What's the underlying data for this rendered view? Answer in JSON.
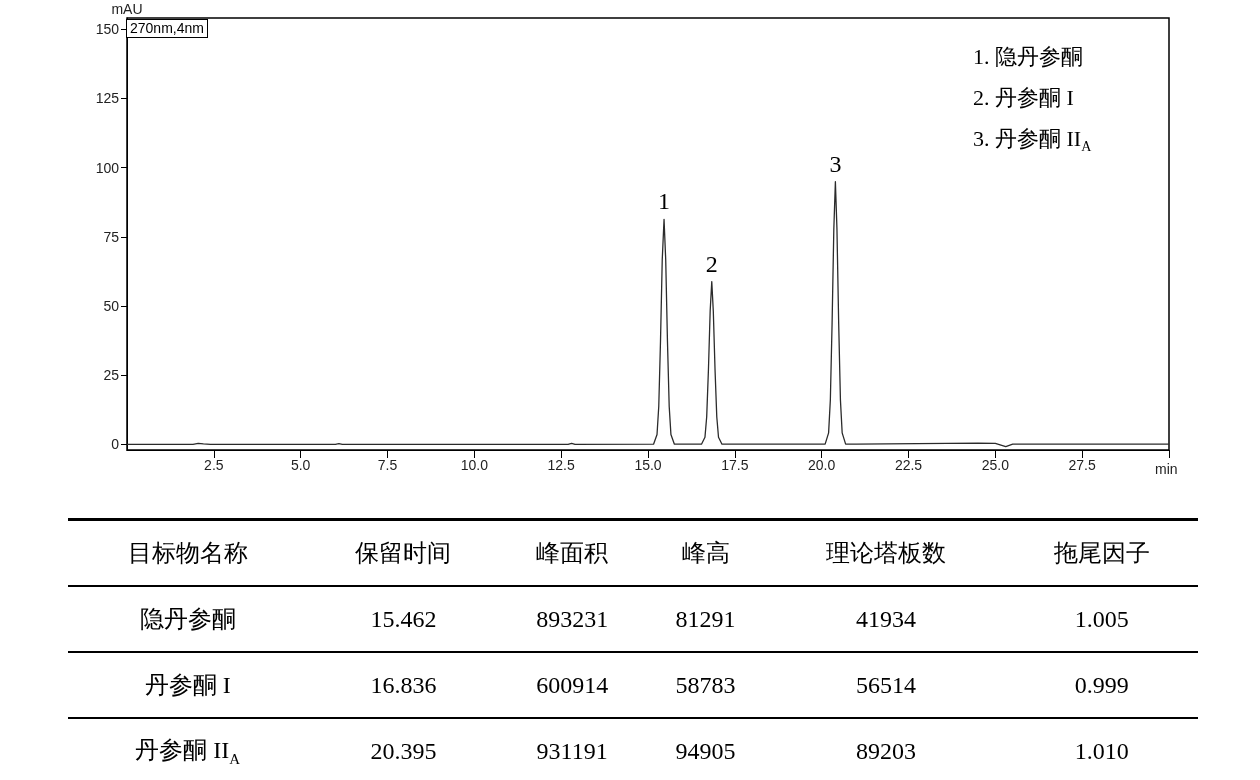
{
  "chart_data": [
    {
      "type": "line",
      "ylabel": "mAU",
      "xlabel": "min",
      "color": "#2b2b2b",
      "line_style": "solid",
      "x": [
        0,
        1.9,
        2.05,
        2.2,
        2.4,
        6.0,
        6.1,
        6.2,
        12.7,
        12.8,
        12.9,
        15.16,
        15.26,
        15.31,
        15.36,
        15.41,
        15.462,
        15.51,
        15.56,
        15.61,
        15.66,
        15.76,
        16.54,
        16.64,
        16.69,
        16.74,
        16.79,
        16.836,
        16.88,
        16.93,
        16.98,
        17.03,
        17.13,
        20.1,
        20.2,
        20.25,
        20.3,
        20.35,
        20.395,
        20.44,
        20.49,
        20.54,
        20.59,
        20.69,
        21.0,
        24.5,
        25.0,
        25.3,
        25.5,
        30.0
      ],
      "values": [
        0,
        0,
        0.4,
        0.2,
        0,
        0,
        0.3,
        0,
        0,
        0.4,
        0,
        0.1,
        3.6,
        13.8,
        37.4,
        66.7,
        81.3,
        66.7,
        37.4,
        13.8,
        3.6,
        0.1,
        0.1,
        2.6,
        10,
        27,
        48.2,
        58.8,
        48.2,
        27,
        10,
        2.6,
        0.1,
        0.1,
        4.2,
        16.1,
        43.7,
        77.8,
        94.9,
        77.8,
        43.7,
        16.1,
        4.2,
        0.1,
        0.1,
        0.5,
        0.4,
        -0.8,
        0.1,
        0.1
      ],
      "xlim": [
        0,
        30
      ],
      "xticks": [
        2.5,
        {
          "value": 5,
          "label": "5.0"
        },
        7.5,
        {
          "value": 10,
          "label": "10.0"
        },
        12.5,
        {
          "value": 15,
          "label": "15.0"
        },
        17.5,
        {
          "value": 20,
          "label": "20.0"
        },
        22.5,
        {
          "value": 25,
          "label": "25.0"
        },
        27.5,
        {
          "value": 30,
          "label": null
        }
      ],
      "ylim": [
        -2,
        154
      ],
      "yticks": [
        0,
        25,
        50,
        75,
        100,
        125,
        150
      ],
      "annotations": [
        {
          "text": "1",
          "x": 15.462,
          "y": 81.3
        },
        {
          "text": "2",
          "x": 16.836,
          "y": 58.8
        },
        {
          "text": "3",
          "x": 20.395,
          "y": 94.9
        },
        "270nm,4nm",
        "1.  隐丹参酮",
        "2.  丹参酮 I",
        "3.  丹参酮 II$_{A}$"
      ]
    },
    {
      "type": "other",
      "categories": [
        "目标物名称",
        "保留时间",
        "峰面积",
        "峰高",
        "理论塔板数",
        "拖尾因子"
      ],
      "y_categories": [
        "隐丹参酮",
        "丹参酮 I",
        "丹参酮 II$_{A}$"
      ],
      "cell_labels": [
        [
          "15.462",
          "893231",
          "81291",
          "41934",
          "1.005"
        ],
        [
          "16.836",
          "600914",
          "58783",
          "56514",
          "0.999"
        ],
        [
          "20.395",
          "931191",
          "94905",
          "89203",
          "1.010"
        ]
      ]
    }
  ]
}
